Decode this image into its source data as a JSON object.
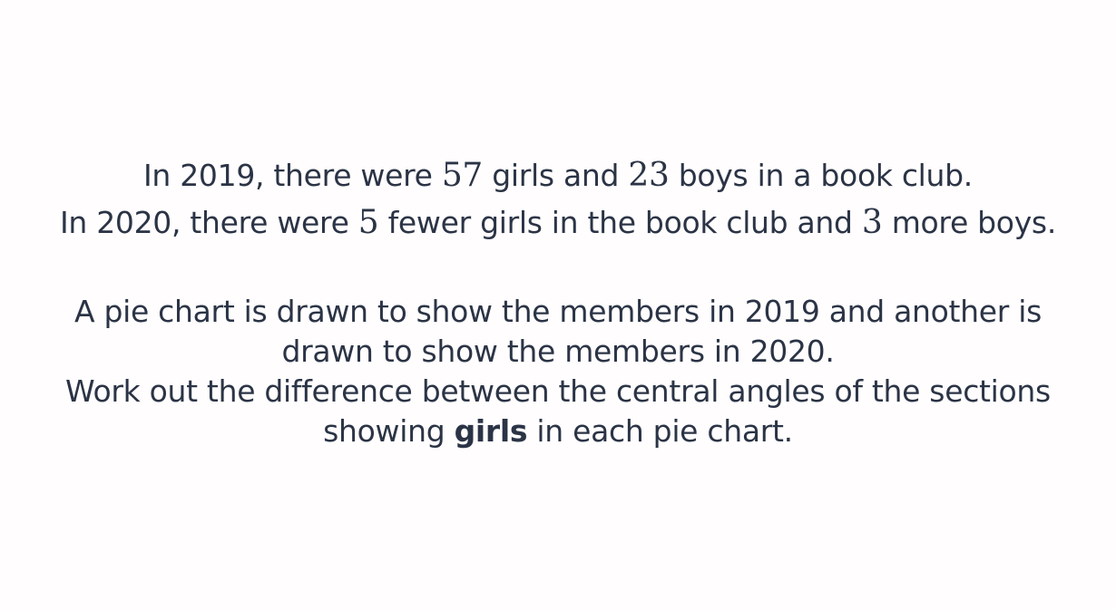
{
  "question": {
    "line1": {
      "prefix": "In 2019, there were ",
      "girls_2019": "57",
      "middle": " girls and ",
      "boys_2019": "23",
      "suffix": " boys in a book club."
    },
    "line2": {
      "prefix": "In 2020, there were ",
      "fewer_girls": "5",
      "middle": " fewer girls in the book club and ",
      "more_boys": "3",
      "suffix": " more boys."
    },
    "para2": {
      "line1": "A pie chart is drawn to show the members in 2019 and another is",
      "line2": "drawn to show the members in 2020.",
      "line3": "Work out the difference between the central angles of the sections",
      "line4_prefix": "showing ",
      "line4_bold": "girls",
      "line4_suffix": " in each pie chart."
    }
  }
}
